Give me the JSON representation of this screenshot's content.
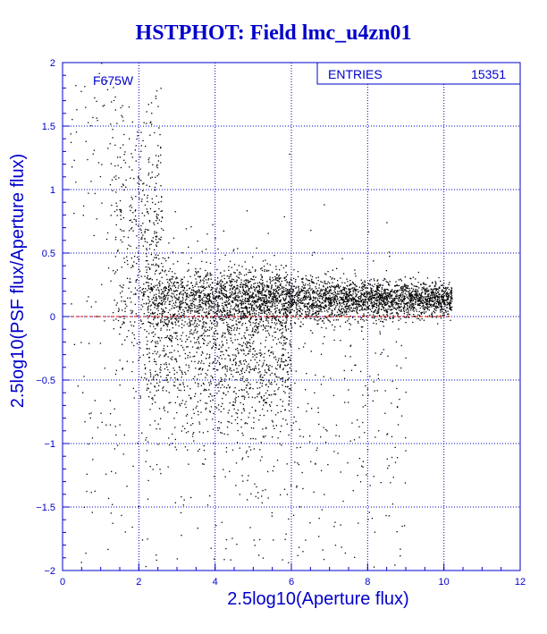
{
  "title": "HSTPHOT: Field lmc_u4zn01",
  "chart_data": {
    "type": "scatter",
    "title": "HSTPHOT: Field lmc_u4zn01",
    "xlabel": "2.5log10(Aperture flux)",
    "ylabel": "2.5log10(PSF flux/Aperture flux)",
    "xlim": [
      0,
      12
    ],
    "ylim": [
      -2,
      2
    ],
    "x_ticks": [
      0,
      2,
      4,
      6,
      8,
      10,
      12
    ],
    "y_ticks": [
      -2,
      -1.5,
      -1,
      -0.5,
      0,
      0.5,
      1,
      1.5,
      2
    ],
    "grid": true,
    "annotation": "F675W",
    "stats_label": "ENTRIES",
    "stats_value": "15351",
    "reference_line_y": 0,
    "series": [
      {
        "distribution": [
          {
            "x_range": [
              0.2,
              1.6
            ],
            "y_center": 1.3,
            "y_spread": 0.55,
            "weight": 0.015
          },
          {
            "x_range": [
              1.3,
              2.6
            ],
            "y_center": 0.6,
            "y_spread": 0.5,
            "weight": 0.07
          },
          {
            "x_range": [
              2.2,
              10.2
            ],
            "y_center": 0.14,
            "y_spread": 0.08,
            "weight": 0.6
          },
          {
            "x_range": [
              2.0,
              6.0
            ],
            "y_center": -0.25,
            "y_spread": 0.35,
            "weight": 0.22
          },
          {
            "x_range": [
              0.3,
              9.0
            ],
            "y_center": -0.8,
            "y_spread": 0.7,
            "weight": 0.095
          }
        ]
      }
    ]
  }
}
